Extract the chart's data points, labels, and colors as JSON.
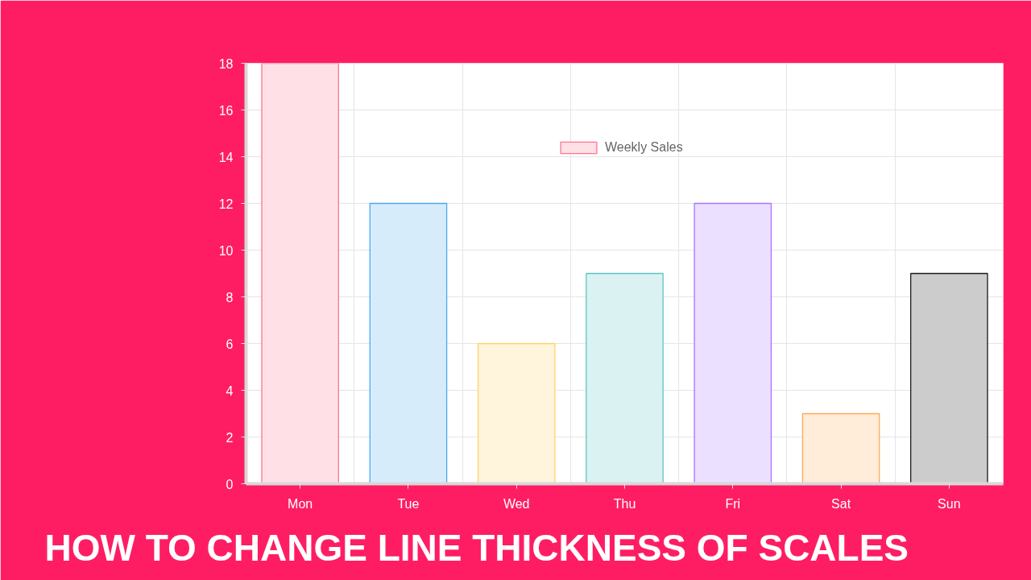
{
  "chart_data": {
    "type": "bar",
    "title": "HOW TO CHANGE LINE THICKNESS OF SCALES",
    "categories": [
      "Mon",
      "Tue",
      "Wed",
      "Thu",
      "Fri",
      "Sat",
      "Sun"
    ],
    "series": [
      {
        "name": "Weekly Sales",
        "values": [
          18,
          12,
          6,
          9,
          12,
          3,
          9
        ],
        "colors": [
          "#ffe0e6",
          "#d7ecfb",
          "#fff5dd",
          "#dbf2f2",
          "#ebe0ff",
          "#ffecd9",
          "#cccccc"
        ]
      }
    ],
    "ylim": [
      0,
      18
    ],
    "yticks": [
      0,
      2,
      4,
      6,
      8,
      10,
      12,
      14,
      16,
      18
    ],
    "grid": true,
    "legend": "top"
  }
}
